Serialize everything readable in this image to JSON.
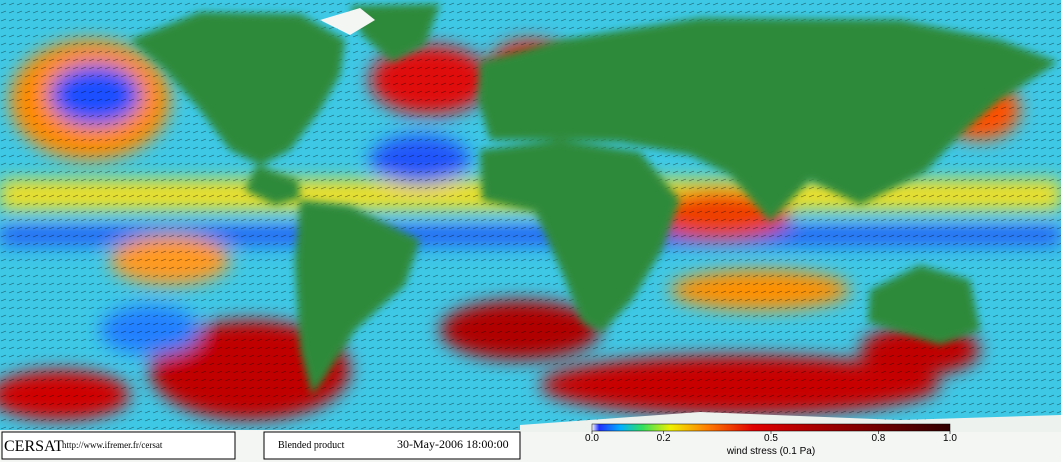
{
  "footer": {
    "logo": "CERSAT",
    "url": "http://www.ifremer.fr/cersat",
    "product": "Blended product",
    "timestamp": "30-May-2006 18:00:00"
  },
  "colorbar": {
    "label": "wind stress (0.1 Pa)",
    "lim": [
      0,
      1
    ],
    "ticks": [
      {
        "value": 0,
        "label": "0.0"
      },
      0.2,
      0.5,
      0.8,
      {
        "value": 1,
        "label": "1.0"
      }
    ]
  }
}
